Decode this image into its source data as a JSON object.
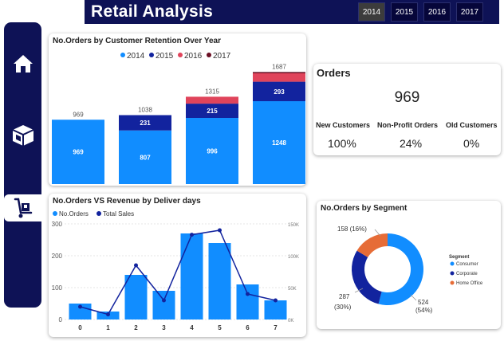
{
  "header": {
    "title": "Retail Analysis",
    "years": [
      "2014",
      "2015",
      "2016",
      "2017"
    ],
    "selected_year": "2014"
  },
  "sidebar": {
    "items": [
      {
        "icon": "home-icon"
      },
      {
        "icon": "package-icon"
      },
      {
        "icon": "hand-truck-icon",
        "active": true
      }
    ]
  },
  "colors": {
    "navy": "#0e1256",
    "s2014": "#118dff",
    "s2015": "#12239e",
    "s2016": "#e0445b",
    "s2017": "#6b0f24",
    "consumer": "#118dff",
    "corporate": "#12239e",
    "home_office": "#e66c37"
  },
  "retention": {
    "title": "No.Orders by Customer Retention Over Year"
  },
  "orders_card": {
    "title": "Orders",
    "total": "969",
    "kpis": [
      {
        "label": "New Customers",
        "value": "100%"
      },
      {
        "label": "Non-Profit Orders",
        "value": "24%"
      },
      {
        "label": "Old Customers",
        "value": "0%"
      }
    ]
  },
  "deliver": {
    "title": "No.Orders VS Revenue by Deliver days"
  },
  "segment": {
    "title": "No.Orders by Segment"
  },
  "chart_data": [
    {
      "type": "bar",
      "stacked": true,
      "title": "No.Orders by Customer Retention Over Year",
      "categories": [
        "2014",
        "2015",
        "2016",
        "2017"
      ],
      "series": [
        {
          "name": "2014",
          "values": [
            969,
            807,
            996,
            1248
          ]
        },
        {
          "name": "2015",
          "values": [
            0,
            231,
            215,
            293
          ]
        },
        {
          "name": "2016",
          "values": [
            0,
            0,
            104,
            127
          ]
        },
        {
          "name": "2017",
          "values": [
            0,
            0,
            0,
            19
          ]
        }
      ],
      "totals": [
        969,
        1038,
        1315,
        1687
      ],
      "legend": "top"
    },
    {
      "type": "bar",
      "title": "No.Orders VS Revenue by Deliver days",
      "categories": [
        "0",
        "1",
        "2",
        "3",
        "4",
        "5",
        "6",
        "7"
      ],
      "series": [
        {
          "name": "No.Orders",
          "values": [
            50,
            25,
            140,
            90,
            270,
            240,
            110,
            60
          ]
        },
        {
          "name": "Total Sales",
          "values": [
            20000,
            8000,
            85000,
            30000,
            133000,
            140000,
            40000,
            30000
          ]
        }
      ],
      "y_ticks": [
        "0",
        "100",
        "200",
        "300"
      ],
      "y2_ticks": [
        "0K",
        "50K",
        "100K",
        "150K"
      ],
      "ylim": [
        0,
        300
      ],
      "y2lim": [
        0,
        150000
      ],
      "legend": "top-left"
    },
    {
      "type": "pie",
      "donut": true,
      "title": "No.Orders by Segment",
      "legend_title": "Segment",
      "slices": [
        {
          "name": "Consumer",
          "value": 524,
          "label": "524",
          "pct": "(54%)"
        },
        {
          "name": "Corporate",
          "value": 287,
          "label": "287",
          "pct": "(30%)"
        },
        {
          "name": "Home Office",
          "value": 158,
          "label": "158 (16%)",
          "pct": ""
        }
      ],
      "legend": "right"
    }
  ]
}
